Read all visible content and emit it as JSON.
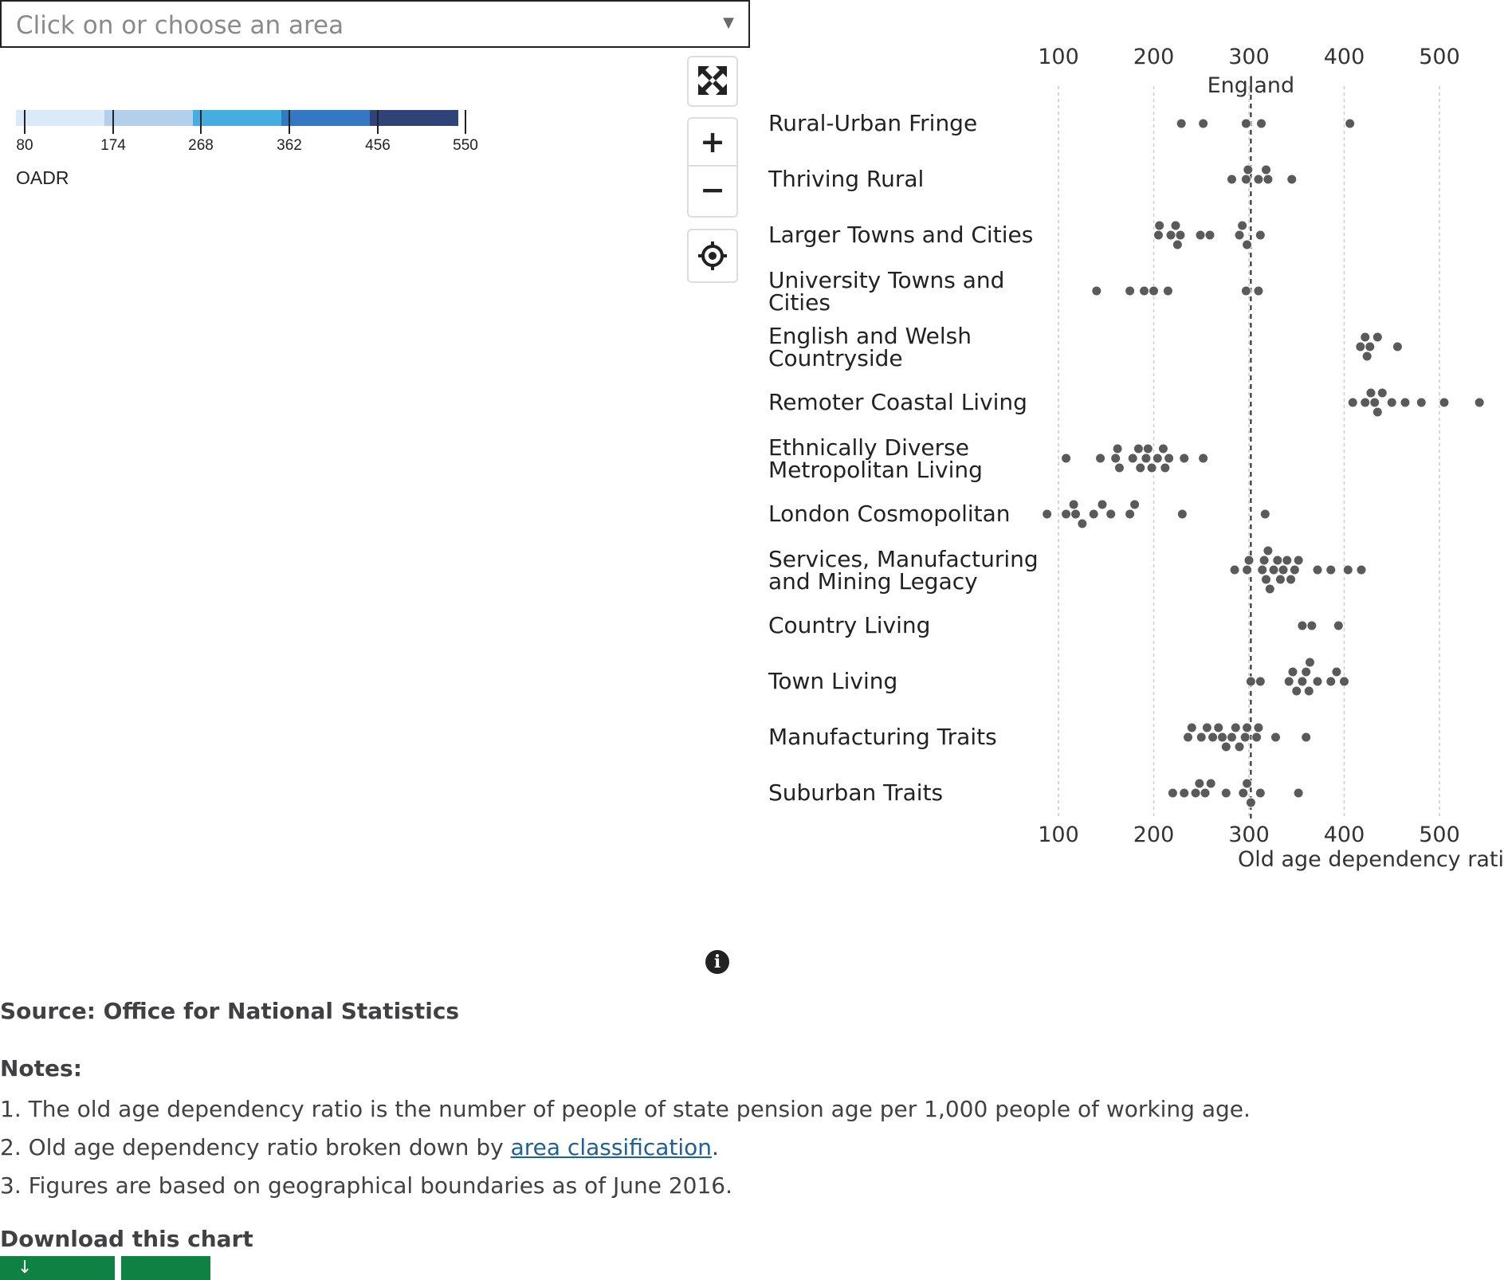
{
  "area_select": {
    "placeholder": "Click on or choose an area",
    "arrow": "▼"
  },
  "legend": {
    "title": "OADR",
    "breaks": [
      "80",
      "174",
      "268",
      "362",
      "456",
      "550"
    ],
    "colors": [
      "#dbeafb",
      "#b3cfee",
      "#46addf",
      "#3278c2",
      "#2e4377"
    ]
  },
  "map_controls": {
    "fullscreen_icon": "fullscreen-icon",
    "zoom_in_label": "+",
    "zoom_out_label": "−",
    "locate_icon": "locate-icon"
  },
  "chart_data": {
    "type": "scatter",
    "xlabel": "Old age dependency ratio",
    "x_ticks": [
      "100",
      "200",
      "300",
      "400",
      "500"
    ],
    "xlim": [
      80,
      550
    ],
    "reference": {
      "label": "England",
      "value": 302
    },
    "point_color": "#5a5a5a",
    "categories": [
      {
        "label": [
          "Rural-Urban Fringe"
        ],
        "values": [
          229,
          252,
          297,
          313,
          406
        ]
      },
      {
        "label": [
          "Thriving Rural"
        ],
        "values": [
          282,
          297,
          299,
          310,
          318,
          320,
          345
        ]
      },
      {
        "label": [
          "Larger Towns and Cities"
        ],
        "values": [
          205,
          206,
          218,
          223,
          225,
          228,
          249,
          259,
          290,
          293,
          298,
          312
        ]
      },
      {
        "label": [
          "University Towns and",
          "Cities"
        ],
        "values": [
          140,
          175,
          190,
          200,
          215,
          297,
          310
        ]
      },
      {
        "label": [
          "English and Welsh",
          "Countryside"
        ],
        "values": [
          417,
          422,
          424,
          427,
          435,
          456
        ]
      },
      {
        "label": [
          "Remoter Coastal Living"
        ],
        "values": [
          409,
          422,
          428,
          432,
          435,
          440,
          450,
          464,
          481,
          505,
          542
        ]
      },
      {
        "label": [
          "Ethnically Diverse",
          "Metropolitan Living"
        ],
        "values": [
          108,
          144,
          160,
          162,
          164,
          178,
          184,
          186,
          192,
          194,
          198,
          204,
          210,
          212,
          216,
          232,
          252
        ]
      },
      {
        "label": [
          "London Cosmopolitan"
        ],
        "values": [
          88,
          108,
          116,
          118,
          125,
          137,
          146,
          155,
          175,
          180,
          230,
          317
        ]
      },
      {
        "label": [
          "Services, Manufacturing",
          "and Mining Legacy"
        ],
        "values": [
          285,
          298,
          300,
          314,
          316,
          318,
          320,
          322,
          326,
          330,
          333,
          336,
          340,
          344,
          348,
          352,
          372,
          386,
          404,
          418
        ]
      },
      {
        "label": [
          "Country Living"
        ],
        "values": [
          356,
          366,
          394
        ]
      },
      {
        "label": [
          "Town Living"
        ],
        "values": [
          302,
          312,
          342,
          346,
          350,
          356,
          360,
          363,
          364,
          372,
          386,
          392,
          400
        ]
      },
      {
        "label": [
          "Manufacturing Traits"
        ],
        "values": [
          236,
          240,
          250,
          256,
          262,
          268,
          272,
          276,
          282,
          286,
          290,
          296,
          298,
          308,
          310,
          328,
          360
        ]
      },
      {
        "label": [
          "Suburban Traits"
        ],
        "values": [
          220,
          232,
          244,
          248,
          254,
          260,
          276,
          294,
          298,
          302,
          312,
          352
        ]
      }
    ]
  },
  "source": "Source: Office for National Statistics",
  "notes": {
    "title": "Notes:",
    "items": {
      "n1": "1. The old age dependency ratio is the number of people of state pension age per 1,000 people of working age.",
      "n2_before": "2. Old age dependency ratio broken down by ",
      "n2_link": "area classification",
      "n2_after": ".",
      "n3": "3. Figures are based on geographical boundaries as of June 2016."
    }
  },
  "download": {
    "title": "Download this chart",
    "button_1": "↓",
    "button_2": ""
  }
}
